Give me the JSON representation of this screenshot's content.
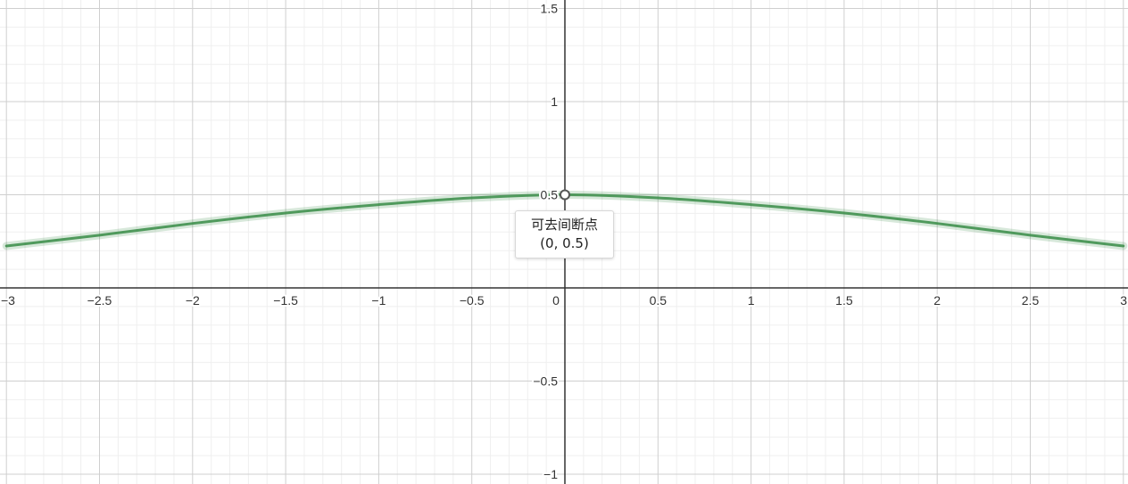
{
  "chart_data": {
    "type": "line",
    "xlim": [
      -3,
      3
    ],
    "ylim": [
      -1,
      1.5
    ],
    "x_ticks": [
      "−3",
      "−2.5",
      "−2",
      "−1.5",
      "−1",
      "−0.5",
      "0",
      "0.5",
      "1",
      "1.5",
      "2",
      "2.5",
      "3"
    ],
    "y_ticks": [
      "1.5",
      "1",
      "0.5",
      "−0.5",
      "−1"
    ],
    "x_tick_values": [
      -3,
      -2.5,
      -2,
      -1.5,
      -1,
      -0.5,
      0,
      0.5,
      1,
      1.5,
      2,
      2.5,
      3
    ],
    "y_tick_values": [
      1.5,
      1,
      0.5,
      -0.5,
      -1
    ],
    "grid": true,
    "series": [
      {
        "color": "#388c46",
        "x": [
          -3,
          -2.5,
          -2,
          -1.5,
          -1,
          -0.5,
          0,
          0.5,
          1,
          1.5,
          2,
          2.5,
          3
        ],
        "y": [
          0.225,
          0.283,
          0.346,
          0.402,
          0.447,
          0.483,
          0.5,
          0.483,
          0.447,
          0.402,
          0.346,
          0.283,
          0.225
        ]
      }
    ],
    "point": {
      "x": 0,
      "y": 0.5,
      "style": "hollow"
    },
    "annotation": {
      "label": "可去间断点",
      "coords": "(0, 0.5)"
    }
  }
}
